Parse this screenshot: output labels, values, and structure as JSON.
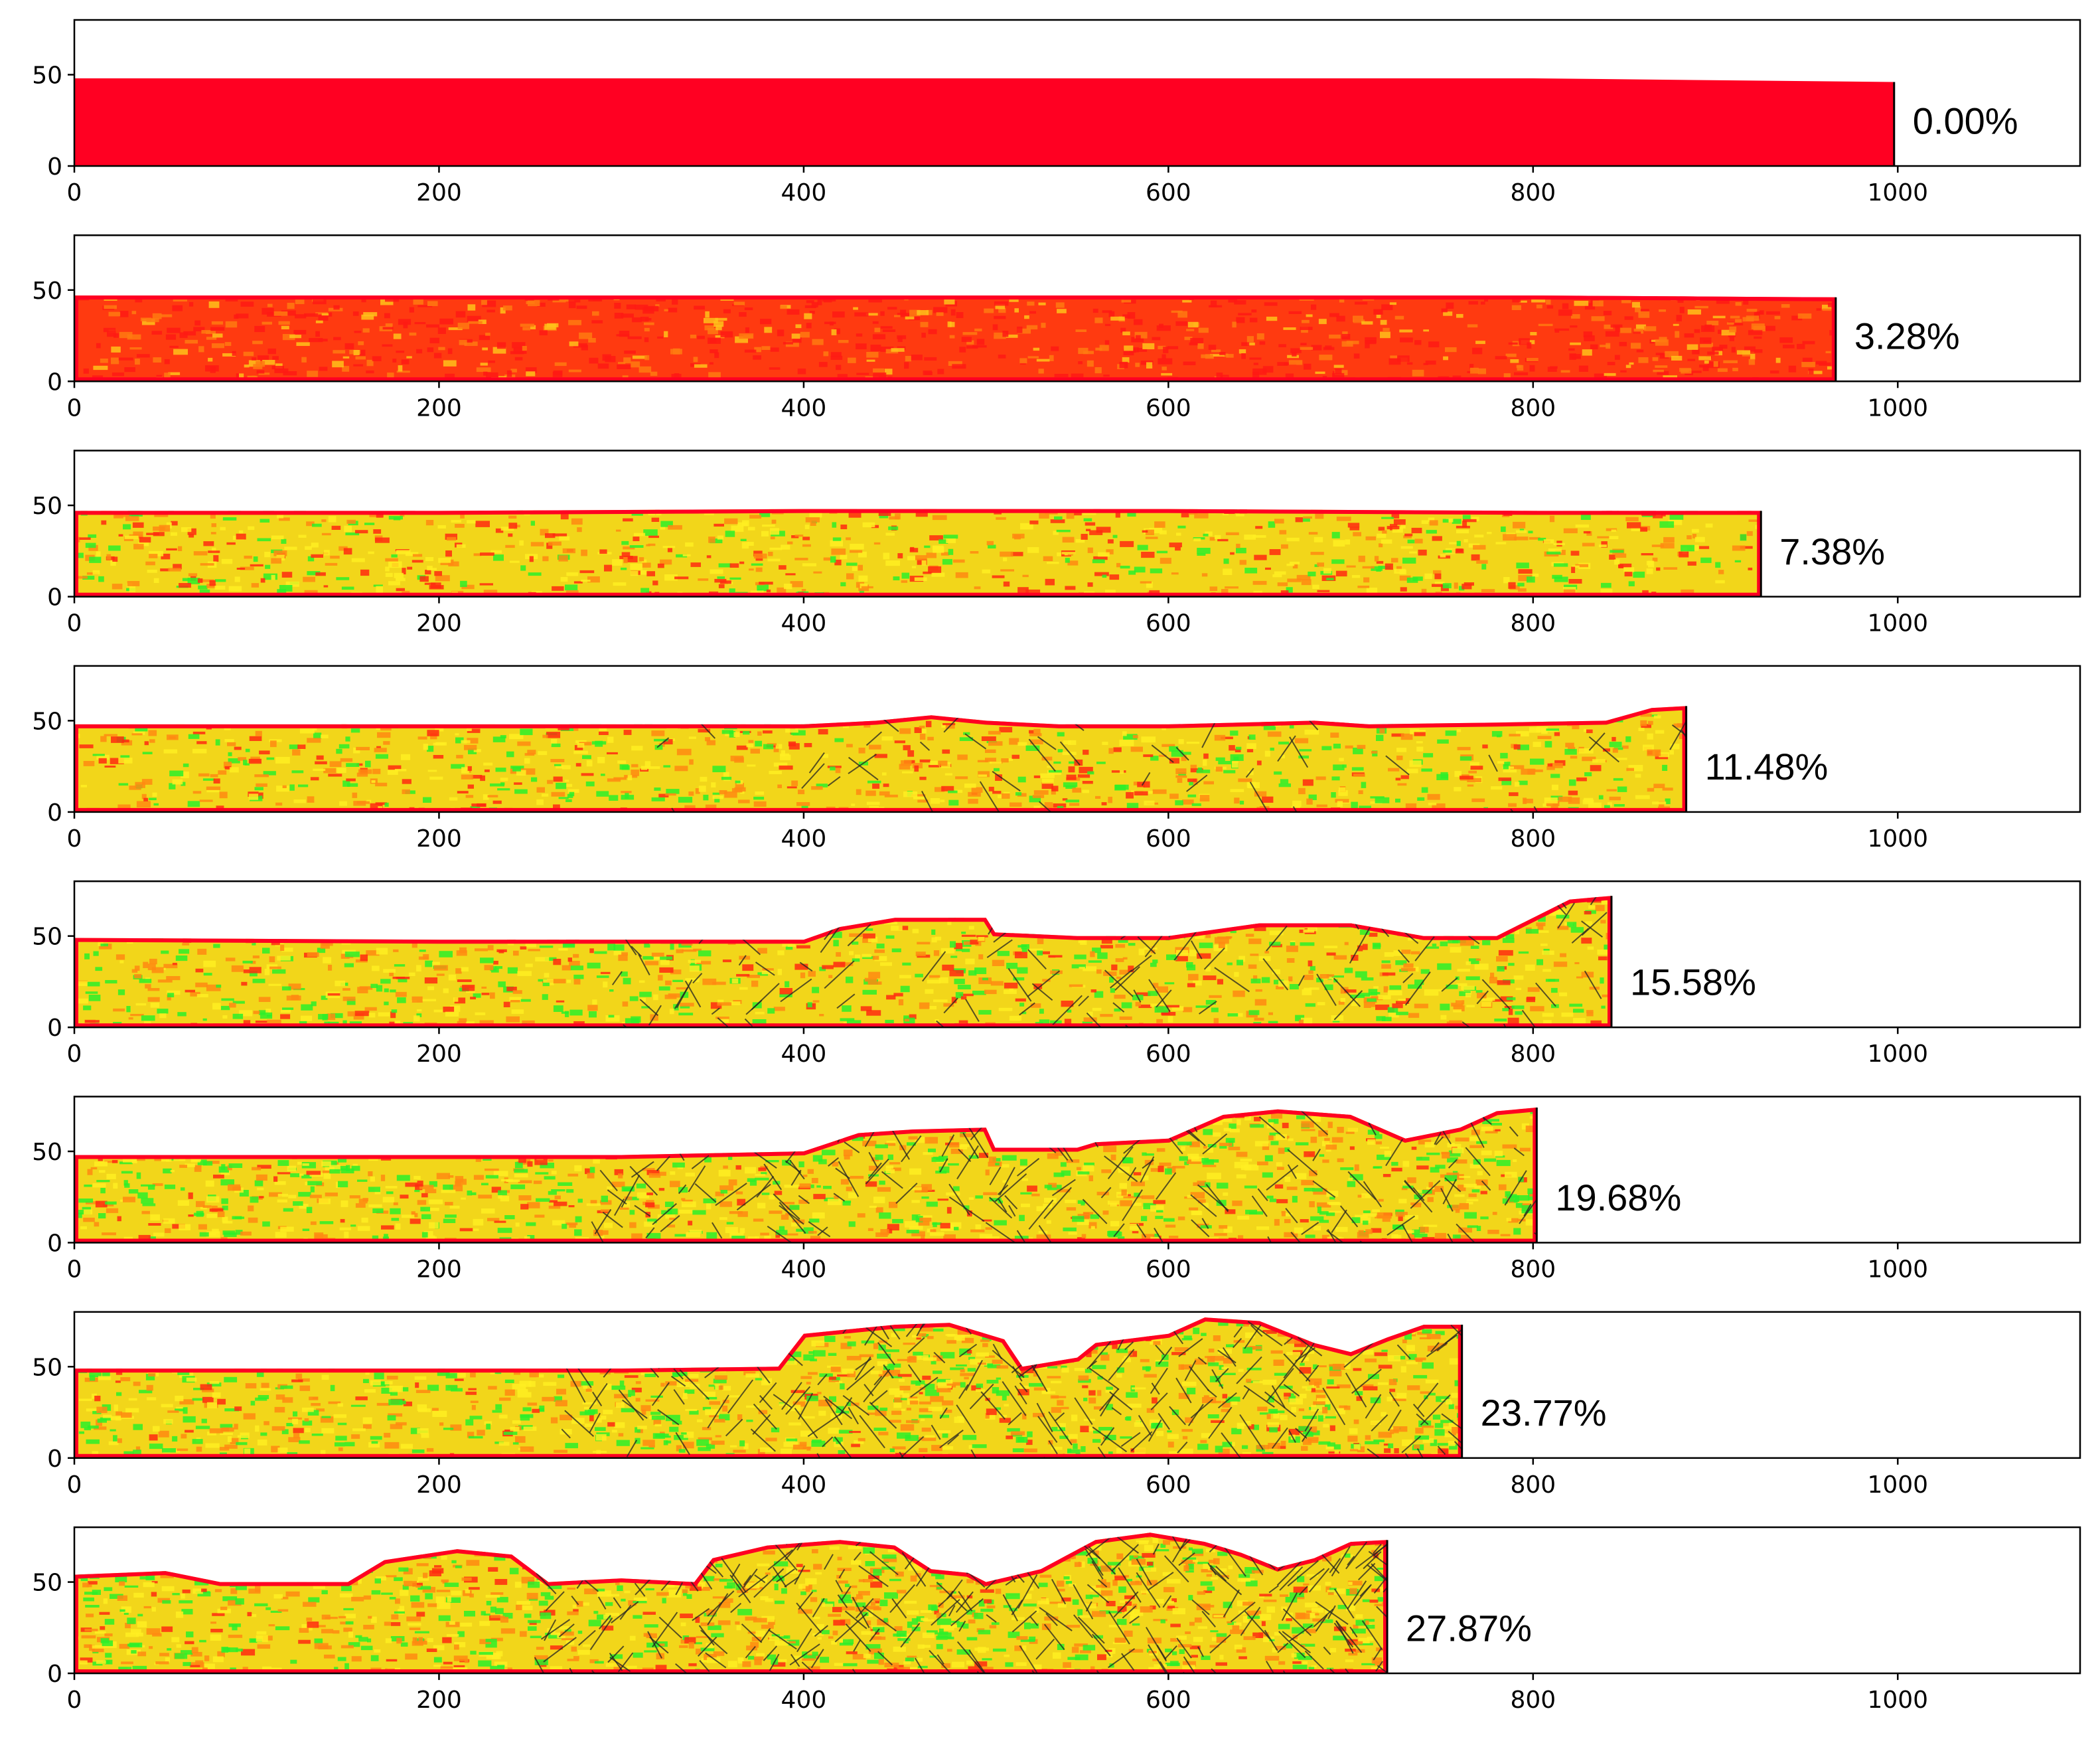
{
  "chart_data": {
    "type": "area",
    "shared_axes": {
      "xlim": [
        0,
        1100
      ],
      "ylim": [
        0,
        80
      ],
      "xticks": [
        0,
        200,
        400,
        600,
        800,
        1000
      ],
      "yticks": [
        0,
        50
      ],
      "grid": false
    },
    "colormap": {
      "low": "#00ff33",
      "mid": "#ffff00",
      "high": "#ff0022",
      "crack": "#222222"
    },
    "panels": [
      {
        "label": "0.00%",
        "right_edge_x": 998,
        "surface": [
          [
            0,
            48
          ],
          [
            200,
            48
          ],
          [
            400,
            48
          ],
          [
            600,
            48
          ],
          [
            800,
            48
          ],
          [
            998,
            46
          ]
        ]
      },
      {
        "label": "3.28%",
        "right_edge_x": 966,
        "surface": [
          [
            0,
            47
          ],
          [
            200,
            47
          ],
          [
            400,
            47
          ],
          [
            600,
            47
          ],
          [
            800,
            47
          ],
          [
            966,
            46
          ]
        ]
      },
      {
        "label": "7.38%",
        "right_edge_x": 925,
        "surface": [
          [
            0,
            47
          ],
          [
            200,
            47
          ],
          [
            400,
            48
          ],
          [
            600,
            48
          ],
          [
            800,
            47
          ],
          [
            925,
            47
          ]
        ]
      },
      {
        "label": "11.48%",
        "right_edge_x": 884,
        "surface": [
          [
            0,
            48
          ],
          [
            200,
            48
          ],
          [
            400,
            48
          ],
          [
            440,
            50
          ],
          [
            470,
            53
          ],
          [
            500,
            50
          ],
          [
            540,
            48
          ],
          [
            600,
            48
          ],
          [
            680,
            50
          ],
          [
            710,
            48
          ],
          [
            780,
            49
          ],
          [
            840,
            50
          ],
          [
            865,
            57
          ],
          [
            884,
            58
          ]
        ]
      },
      {
        "label": "15.58%",
        "right_edge_x": 843,
        "surface": [
          [
            0,
            49
          ],
          [
            200,
            48
          ],
          [
            400,
            48
          ],
          [
            420,
            55
          ],
          [
            450,
            60
          ],
          [
            480,
            60
          ],
          [
            500,
            60
          ],
          [
            505,
            52
          ],
          [
            550,
            50
          ],
          [
            600,
            50
          ],
          [
            650,
            57
          ],
          [
            700,
            57
          ],
          [
            740,
            50
          ],
          [
            780,
            50
          ],
          [
            800,
            60
          ],
          [
            820,
            70
          ],
          [
            843,
            72
          ]
        ]
      },
      {
        "label": "19.68%",
        "right_edge_x": 802,
        "surface": [
          [
            0,
            48
          ],
          [
            200,
            48
          ],
          [
            300,
            48
          ],
          [
            400,
            50
          ],
          [
            430,
            60
          ],
          [
            460,
            62
          ],
          [
            500,
            63
          ],
          [
            505,
            52
          ],
          [
            550,
            52
          ],
          [
            560,
            55
          ],
          [
            600,
            57
          ],
          [
            630,
            70
          ],
          [
            660,
            73
          ],
          [
            700,
            70
          ],
          [
            730,
            57
          ],
          [
            760,
            63
          ],
          [
            780,
            72
          ],
          [
            802,
            74
          ]
        ]
      },
      {
        "label": "23.77%",
        "right_edge_x": 761,
        "surface": [
          [
            0,
            49
          ],
          [
            200,
            49
          ],
          [
            300,
            49
          ],
          [
            386,
            50
          ],
          [
            400,
            68
          ],
          [
            450,
            73
          ],
          [
            480,
            74
          ],
          [
            510,
            65
          ],
          [
            520,
            50
          ],
          [
            550,
            55
          ],
          [
            560,
            63
          ],
          [
            600,
            68
          ],
          [
            620,
            77
          ],
          [
            650,
            75
          ],
          [
            680,
            63
          ],
          [
            700,
            58
          ],
          [
            720,
            66
          ],
          [
            740,
            73
          ],
          [
            761,
            73
          ]
        ]
      },
      {
        "label": "27.87%",
        "right_edge_x": 720,
        "surface": [
          [
            0,
            54
          ],
          [
            50,
            56
          ],
          [
            80,
            50
          ],
          [
            150,
            50
          ],
          [
            170,
            62
          ],
          [
            210,
            68
          ],
          [
            240,
            65
          ],
          [
            260,
            50
          ],
          [
            300,
            52
          ],
          [
            340,
            50
          ],
          [
            350,
            63
          ],
          [
            380,
            70
          ],
          [
            420,
            73
          ],
          [
            450,
            70
          ],
          [
            470,
            57
          ],
          [
            490,
            55
          ],
          [
            500,
            50
          ],
          [
            530,
            57
          ],
          [
            560,
            73
          ],
          [
            590,
            77
          ],
          [
            620,
            72
          ],
          [
            640,
            66
          ],
          [
            660,
            58
          ],
          [
            680,
            63
          ],
          [
            700,
            72
          ],
          [
            720,
            73
          ]
        ]
      }
    ]
  }
}
